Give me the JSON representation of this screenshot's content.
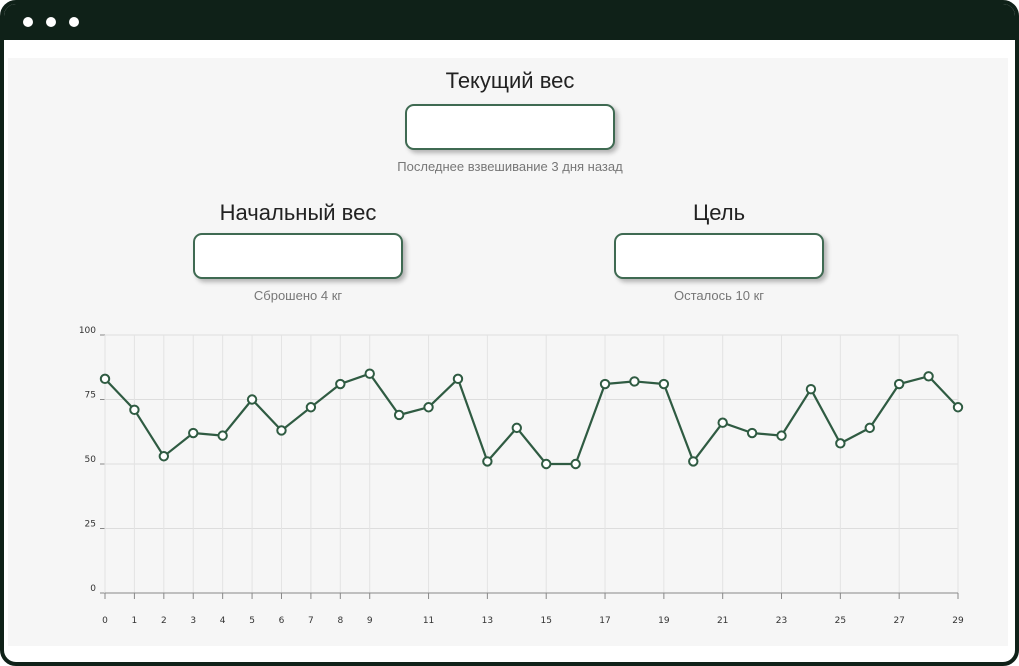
{
  "window": {
    "controls": [
      "dot",
      "dot",
      "dot"
    ]
  },
  "current_weight": {
    "title": "Текущий вес",
    "value": "",
    "note": "Последнее взвешивание 3 дня назад"
  },
  "start_weight": {
    "title": "Начальный вес",
    "value": "",
    "note": "Сброшено 4 кг"
  },
  "goal_weight": {
    "title": "Цель",
    "value": "",
    "note": "Осталось 10 кг"
  },
  "colors": {
    "accent": "#2f5b42",
    "window_frame": "#0f2118",
    "content_bg": "#f6f6f6"
  },
  "chart_data": {
    "type": "line",
    "title": "",
    "xlabel": "",
    "ylabel": "",
    "x": [
      0,
      1,
      2,
      3,
      4,
      5,
      6,
      7,
      8,
      9,
      10,
      11,
      12,
      13,
      14,
      15,
      16,
      17,
      18,
      19,
      20,
      21,
      22,
      23,
      24,
      25,
      26,
      27,
      28,
      29
    ],
    "values": [
      83,
      71,
      53,
      62,
      61,
      75,
      63,
      72,
      81,
      85,
      69,
      72,
      83,
      51,
      64,
      50,
      50,
      81,
      82,
      81,
      51,
      66,
      62,
      61,
      79,
      58,
      64,
      81,
      84,
      72
    ],
    "x_tick_labels": [
      "0",
      "1",
      "2",
      "3",
      "4",
      "5",
      "6",
      "7",
      "8",
      "9",
      "11",
      "13",
      "15",
      "17",
      "19",
      "21",
      "23",
      "25",
      "27",
      "29"
    ],
    "x_tick_values": [
      0,
      1,
      2,
      3,
      4,
      5,
      6,
      7,
      8,
      9,
      11,
      13,
      15,
      17,
      19,
      21,
      23,
      25,
      27,
      29
    ],
    "x_gridlines": [
      0,
      1,
      2,
      3,
      4,
      5,
      6,
      7,
      8,
      9,
      11,
      13,
      15,
      17,
      19,
      21,
      23,
      25,
      27,
      29
    ],
    "y_ticks": [
      0,
      25,
      50,
      75,
      100
    ],
    "y_tick_labels": [
      "0",
      "25",
      "50",
      "75",
      "100"
    ],
    "xlim": [
      0,
      29
    ],
    "ylim": [
      0,
      100
    ],
    "grid": true,
    "marker": "hollow-circle"
  }
}
